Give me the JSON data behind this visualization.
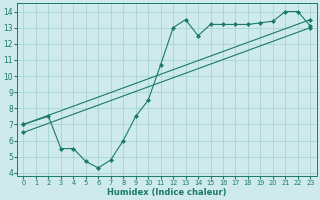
{
  "line1_x": [
    0,
    2,
    3,
    4,
    5,
    6,
    7,
    8,
    9,
    10,
    11,
    12,
    13,
    14,
    15,
    16,
    17,
    18,
    19,
    20,
    21,
    22,
    23
  ],
  "line1_y": [
    7.0,
    7.5,
    5.5,
    5.5,
    4.7,
    4.3,
    4.8,
    6.0,
    7.5,
    8.5,
    10.7,
    13.0,
    13.5,
    12.5,
    13.2,
    13.2,
    13.2,
    13.2,
    13.3,
    13.4,
    14.0,
    14.0,
    13.1
  ],
  "line2_x": [
    0,
    23
  ],
  "line2_y": [
    7.0,
    13.5
  ],
  "line3_x": [
    0,
    23
  ],
  "line3_y": [
    6.5,
    13.0
  ],
  "line_color": "#1a7a6a",
  "bg_color": "#ceeaea",
  "grid_color": "#a8d4d4",
  "xlabel": "Humidex (Indice chaleur)",
  "xlim": [
    -0.5,
    23.5
  ],
  "ylim": [
    3.8,
    14.5
  ],
  "yticks": [
    4,
    5,
    6,
    7,
    8,
    9,
    10,
    11,
    12,
    13,
    14
  ],
  "xticks": [
    0,
    1,
    2,
    3,
    4,
    5,
    6,
    7,
    8,
    9,
    10,
    11,
    12,
    13,
    14,
    15,
    16,
    17,
    18,
    19,
    20,
    21,
    22,
    23
  ],
  "xlabel_fontsize": 6.0,
  "tick_fontsize_x": 4.8,
  "tick_fontsize_y": 5.5
}
